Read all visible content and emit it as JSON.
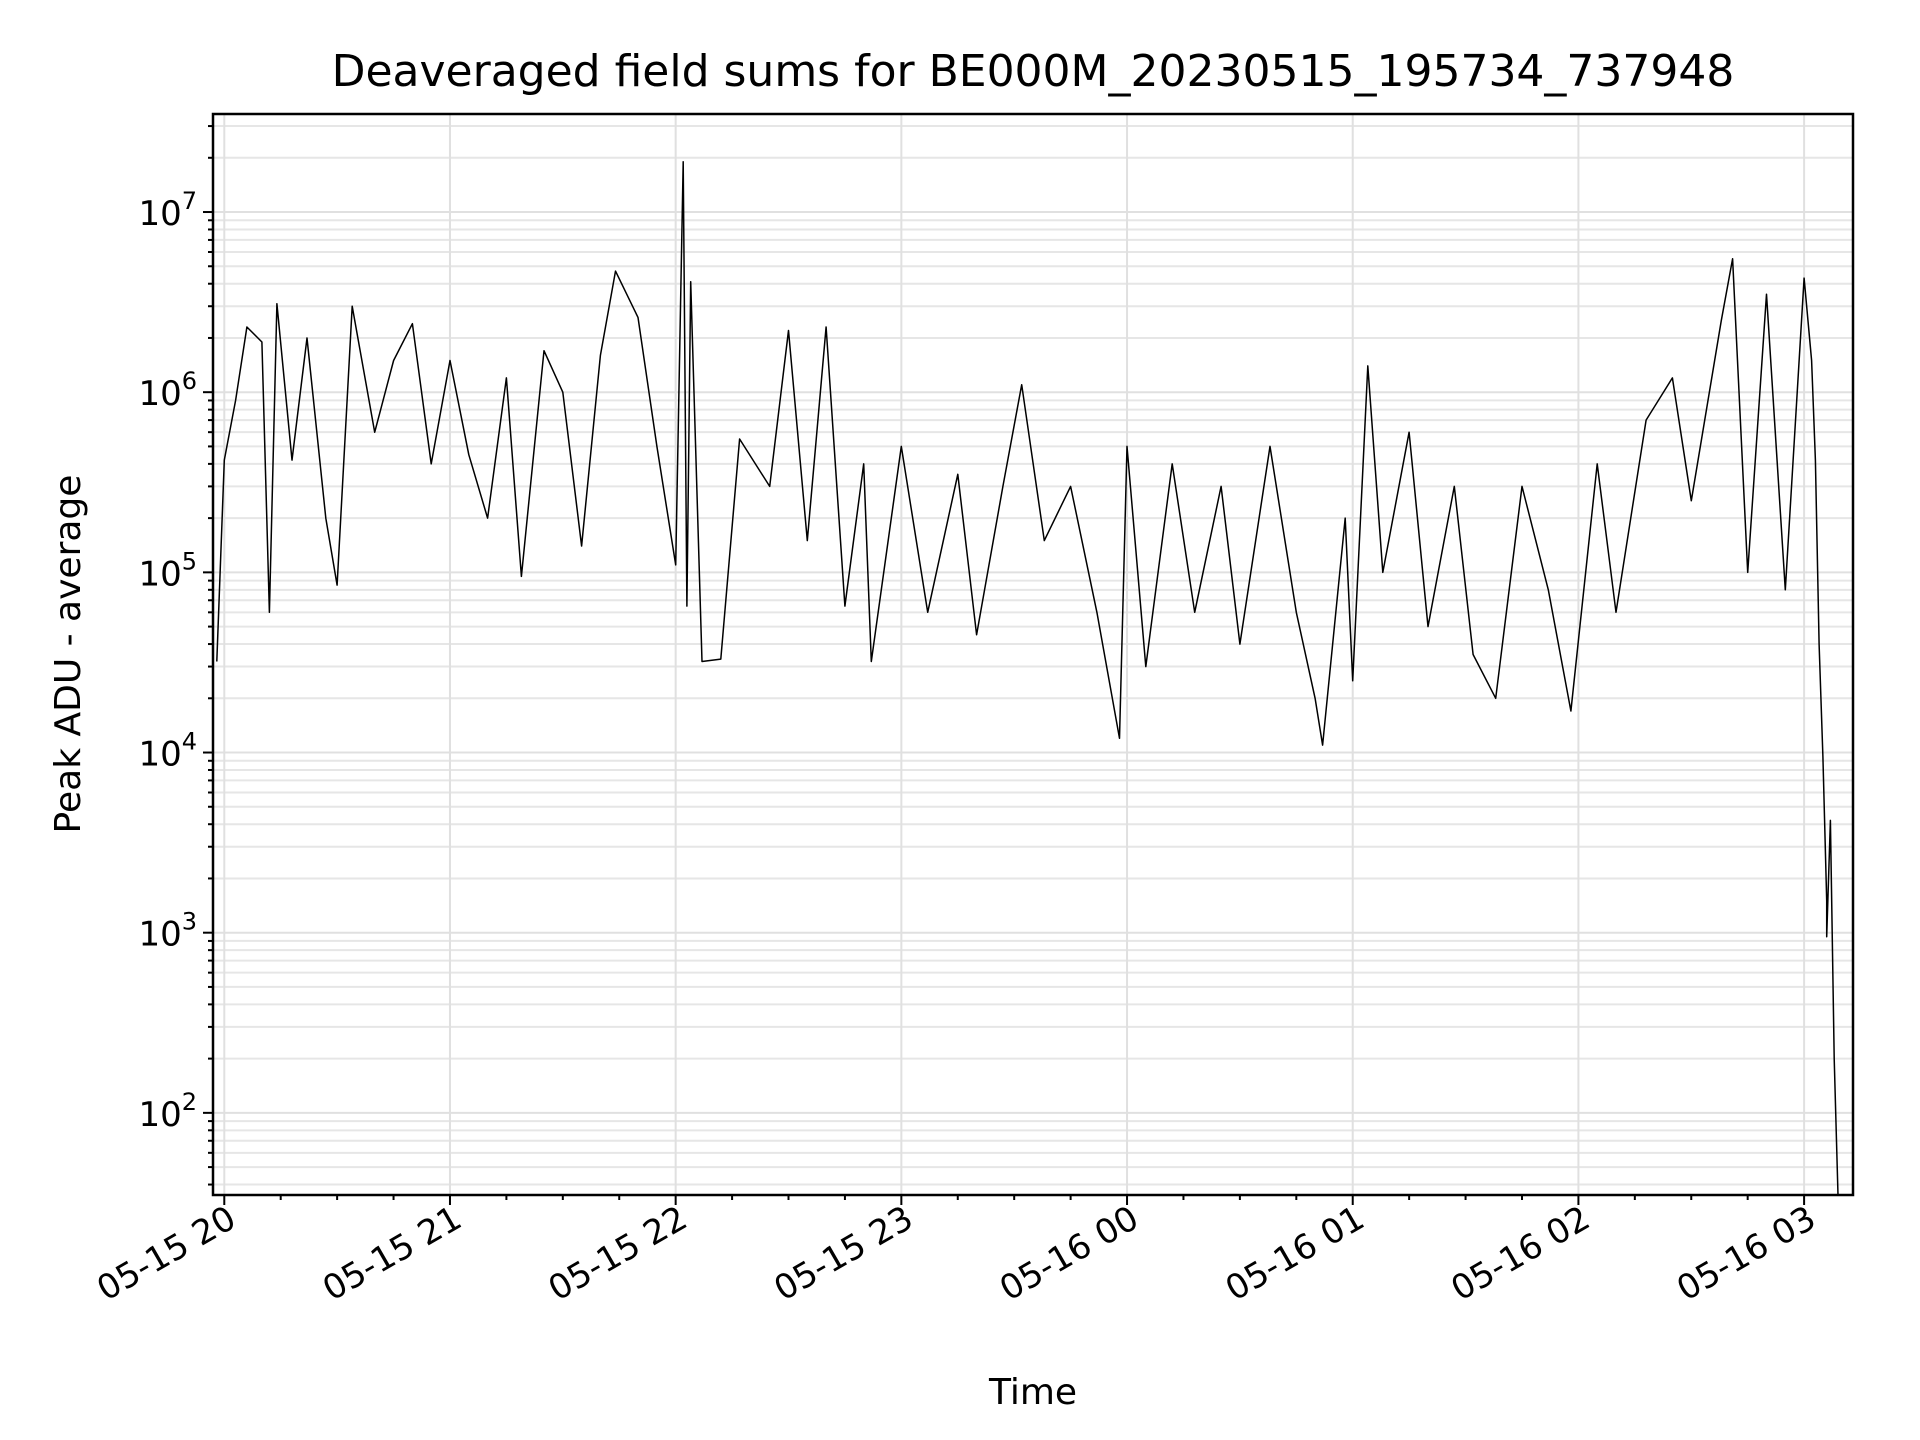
{
  "chart_data": {
    "type": "line",
    "title": "Deaveraged field sums for BE000M_20230515_195734_737948",
    "xlabel": "Time",
    "ylabel": "Peak ADU - average",
    "x_ticks": [
      "05-15 20",
      "05-15 21",
      "05-15 22",
      "05-15 23",
      "05-16 00",
      "05-16 01",
      "05-16 02",
      "05-16 03"
    ],
    "y_ticks": [
      {
        "base": "10",
        "exp": "2",
        "value": 100
      },
      {
        "base": "10",
        "exp": "3",
        "value": 1000
      },
      {
        "base": "10",
        "exp": "4",
        "value": 10000
      },
      {
        "base": "10",
        "exp": "5",
        "value": 100000
      },
      {
        "base": "10",
        "exp": "6",
        "value": 1000000
      },
      {
        "base": "10",
        "exp": "7",
        "value": 10000000
      }
    ],
    "y_scale": "log",
    "xlim": [
      "2023-05-15 19:57",
      "2023-05-16 03:13"
    ],
    "ylim": [
      35,
      35000000
    ],
    "grid": true,
    "line_color": "#000000",
    "series": [
      {
        "points": [
          [
            "2023-05-15 19:58",
            32000
          ],
          [
            "2023-05-15 20:00",
            420000
          ],
          [
            "2023-05-15 20:03",
            900000
          ],
          [
            "2023-05-15 20:06",
            2300000
          ],
          [
            "2023-05-15 20:10",
            1900000
          ],
          [
            "2023-05-15 20:12",
            60000
          ],
          [
            "2023-05-15 20:14",
            3100000
          ],
          [
            "2023-05-15 20:18",
            420000
          ],
          [
            "2023-05-15 20:22",
            2000000
          ],
          [
            "2023-05-15 20:27",
            200000
          ],
          [
            "2023-05-15 20:30",
            85000
          ],
          [
            "2023-05-15 20:34",
            3000000
          ],
          [
            "2023-05-15 20:40",
            600000
          ],
          [
            "2023-05-15 20:45",
            1500000
          ],
          [
            "2023-05-15 20:50",
            2400000
          ],
          [
            "2023-05-15 20:55",
            400000
          ],
          [
            "2023-05-15 21:00",
            1500000
          ],
          [
            "2023-05-15 21:05",
            450000
          ],
          [
            "2023-05-15 21:10",
            200000
          ],
          [
            "2023-05-15 21:15",
            1200000
          ],
          [
            "2023-05-15 21:19",
            95000
          ],
          [
            "2023-05-15 21:25",
            1700000
          ],
          [
            "2023-05-15 21:30",
            1000000
          ],
          [
            "2023-05-15 21:35",
            140000
          ],
          [
            "2023-05-15 21:40",
            1600000
          ],
          [
            "2023-05-15 21:44",
            4700000
          ],
          [
            "2023-05-15 21:50",
            2600000
          ],
          [
            "2023-05-15 21:55",
            500000
          ],
          [
            "2023-05-15 22:00",
            110000
          ],
          [
            "2023-05-15 22:02",
            19000000
          ],
          [
            "2023-05-15 22:03",
            65000
          ],
          [
            "2023-05-15 22:04",
            4100000
          ],
          [
            "2023-05-15 22:07",
            32000
          ],
          [
            "2023-05-15 22:12",
            33000
          ],
          [
            "2023-05-15 22:17",
            550000
          ],
          [
            "2023-05-15 22:25",
            300000
          ],
          [
            "2023-05-15 22:30",
            2200000
          ],
          [
            "2023-05-15 22:35",
            150000
          ],
          [
            "2023-05-15 22:40",
            2300000
          ],
          [
            "2023-05-15 22:45",
            65000
          ],
          [
            "2023-05-15 22:50",
            400000
          ],
          [
            "2023-05-15 22:52",
            32000
          ],
          [
            "2023-05-15 23:00",
            500000
          ],
          [
            "2023-05-15 23:07",
            60000
          ],
          [
            "2023-05-15 23:15",
            350000
          ],
          [
            "2023-05-15 23:20",
            45000
          ],
          [
            "2023-05-15 23:27",
            300000
          ],
          [
            "2023-05-15 23:32",
            1100000
          ],
          [
            "2023-05-15 23:38",
            150000
          ],
          [
            "2023-05-15 23:45",
            300000
          ],
          [
            "2023-05-15 23:52",
            60000
          ],
          [
            "2023-05-15 23:58",
            12000
          ],
          [
            "2023-05-16 00:00",
            500000
          ],
          [
            "2023-05-16 00:05",
            30000
          ],
          [
            "2023-05-16 00:12",
            400000
          ],
          [
            "2023-05-16 00:18",
            60000
          ],
          [
            "2023-05-16 00:25",
            300000
          ],
          [
            "2023-05-16 00:30",
            40000
          ],
          [
            "2023-05-16 00:38",
            500000
          ],
          [
            "2023-05-16 00:45",
            60000
          ],
          [
            "2023-05-16 00:50",
            20000
          ],
          [
            "2023-05-16 00:52",
            11000
          ],
          [
            "2023-05-16 00:58",
            200000
          ],
          [
            "2023-05-16 01:00",
            25000
          ],
          [
            "2023-05-16 01:04",
            1400000
          ],
          [
            "2023-05-16 01:08",
            100000
          ],
          [
            "2023-05-16 01:15",
            600000
          ],
          [
            "2023-05-16 01:20",
            50000
          ],
          [
            "2023-05-16 01:27",
            300000
          ],
          [
            "2023-05-16 01:32",
            35000
          ],
          [
            "2023-05-16 01:38",
            20000
          ],
          [
            "2023-05-16 01:45",
            300000
          ],
          [
            "2023-05-16 01:52",
            80000
          ],
          [
            "2023-05-16 01:58",
            17000
          ],
          [
            "2023-05-16 02:05",
            400000
          ],
          [
            "2023-05-16 02:10",
            60000
          ],
          [
            "2023-05-16 02:18",
            700000
          ],
          [
            "2023-05-16 02:25",
            1200000
          ],
          [
            "2023-05-16 02:30",
            250000
          ],
          [
            "2023-05-16 02:38",
            2500000
          ],
          [
            "2023-05-16 02:41",
            5500000
          ],
          [
            "2023-05-16 02:45",
            100000
          ],
          [
            "2023-05-16 02:50",
            3500000
          ],
          [
            "2023-05-16 02:55",
            80000
          ],
          [
            "2023-05-16 03:00",
            4300000
          ],
          [
            "2023-05-16 03:02",
            1500000
          ],
          [
            "2023-05-16 03:03",
            420000
          ],
          [
            "2023-05-16 03:04",
            40000
          ],
          [
            "2023-05-16 03:05",
            9500
          ],
          [
            "2023-05-16 03:06",
            1500
          ],
          [
            "2023-05-16 03:06",
            950
          ],
          [
            "2023-05-16 03:07",
            4200
          ],
          [
            "2023-05-16 03:08",
            200
          ],
          [
            "2023-05-16 03:09",
            35
          ]
        ]
      }
    ]
  }
}
